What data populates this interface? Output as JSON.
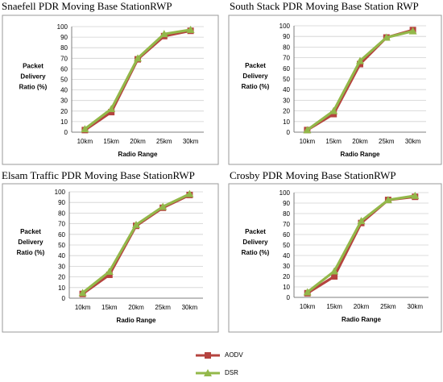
{
  "colors": {
    "aodv": "#B5433F",
    "dsr": "#93B84A"
  },
  "legend": {
    "aodv_label": "AODV",
    "dsr_label": "DSR"
  },
  "chart_data": [
    {
      "type": "line",
      "title": "Snaefell PDR Moving Base StationRWP",
      "ylabel_lines": [
        "Packet",
        "Delivery",
        "Ratio (%)"
      ],
      "xlabel": "Radio Range",
      "categories": [
        "10km",
        "15km",
        "20km",
        "25km",
        "30km"
      ],
      "ylim": [
        0,
        100
      ],
      "yticks": [
        "0",
        "10",
        "20",
        "30",
        "40",
        "50",
        "60",
        "70",
        "80",
        "90",
        "100"
      ],
      "series": [
        {
          "name": "AODV",
          "values": [
            2,
            19,
            69,
            91,
            96
          ]
        },
        {
          "name": "DSR",
          "values": [
            3,
            22,
            70,
            93,
            97
          ]
        }
      ]
    },
    {
      "type": "line",
      "title": "South Stack PDR Moving Base Station RWP",
      "ylabel_lines": [
        "Packet",
        "Delivery",
        "Ratio (%)"
      ],
      "xlabel": "Radio Range",
      "categories": [
        "10km",
        "15km",
        "20km",
        "25km",
        "30km"
      ],
      "ylim": [
        0,
        100
      ],
      "yticks": [
        "0",
        "10",
        "20",
        "30",
        "40",
        "50",
        "60",
        "70",
        "80",
        "90",
        "100"
      ],
      "series": [
        {
          "name": "AODV",
          "values": [
            2,
            17,
            64,
            89,
            96
          ]
        },
        {
          "name": "DSR",
          "values": [
            2,
            20,
            67,
            89,
            95
          ]
        }
      ]
    },
    {
      "type": "line",
      "title": "Elsam Traffic PDR Moving Base StationRWP",
      "ylabel_lines": [
        "Packet",
        "Delivery",
        "Ratio (%)"
      ],
      "xlabel": "Radio Range",
      "categories": [
        "10km",
        "15km",
        "20km",
        "25km",
        "30km"
      ],
      "ylim": [
        0,
        100
      ],
      "yticks": [
        "0",
        "10",
        "20",
        "30",
        "40",
        "50",
        "60",
        "70",
        "80",
        "90",
        "100"
      ],
      "series": [
        {
          "name": "AODV",
          "values": [
            4,
            22,
            68,
            85,
            97
          ]
        },
        {
          "name": "DSR",
          "values": [
            5,
            25,
            69,
            86,
            98
          ]
        }
      ]
    },
    {
      "type": "line",
      "title": "Crosby PDR Moving Base StationRWP",
      "ylabel_lines": [
        "Packet",
        "Delivery",
        "Ratio (%)"
      ],
      "xlabel": "Radio Range",
      "categories": [
        "10km",
        "15km",
        "20km",
        "25km",
        "30km"
      ],
      "ylim": [
        0,
        100
      ],
      "yticks": [
        "0",
        "10",
        "20",
        "30",
        "40",
        "50",
        "60",
        "70",
        "80",
        "90",
        "100"
      ],
      "series": [
        {
          "name": "AODV",
          "values": [
            4,
            20,
            71,
            93,
            96
          ]
        },
        {
          "name": "DSR",
          "values": [
            5,
            25,
            73,
            93,
            97
          ]
        }
      ]
    }
  ]
}
